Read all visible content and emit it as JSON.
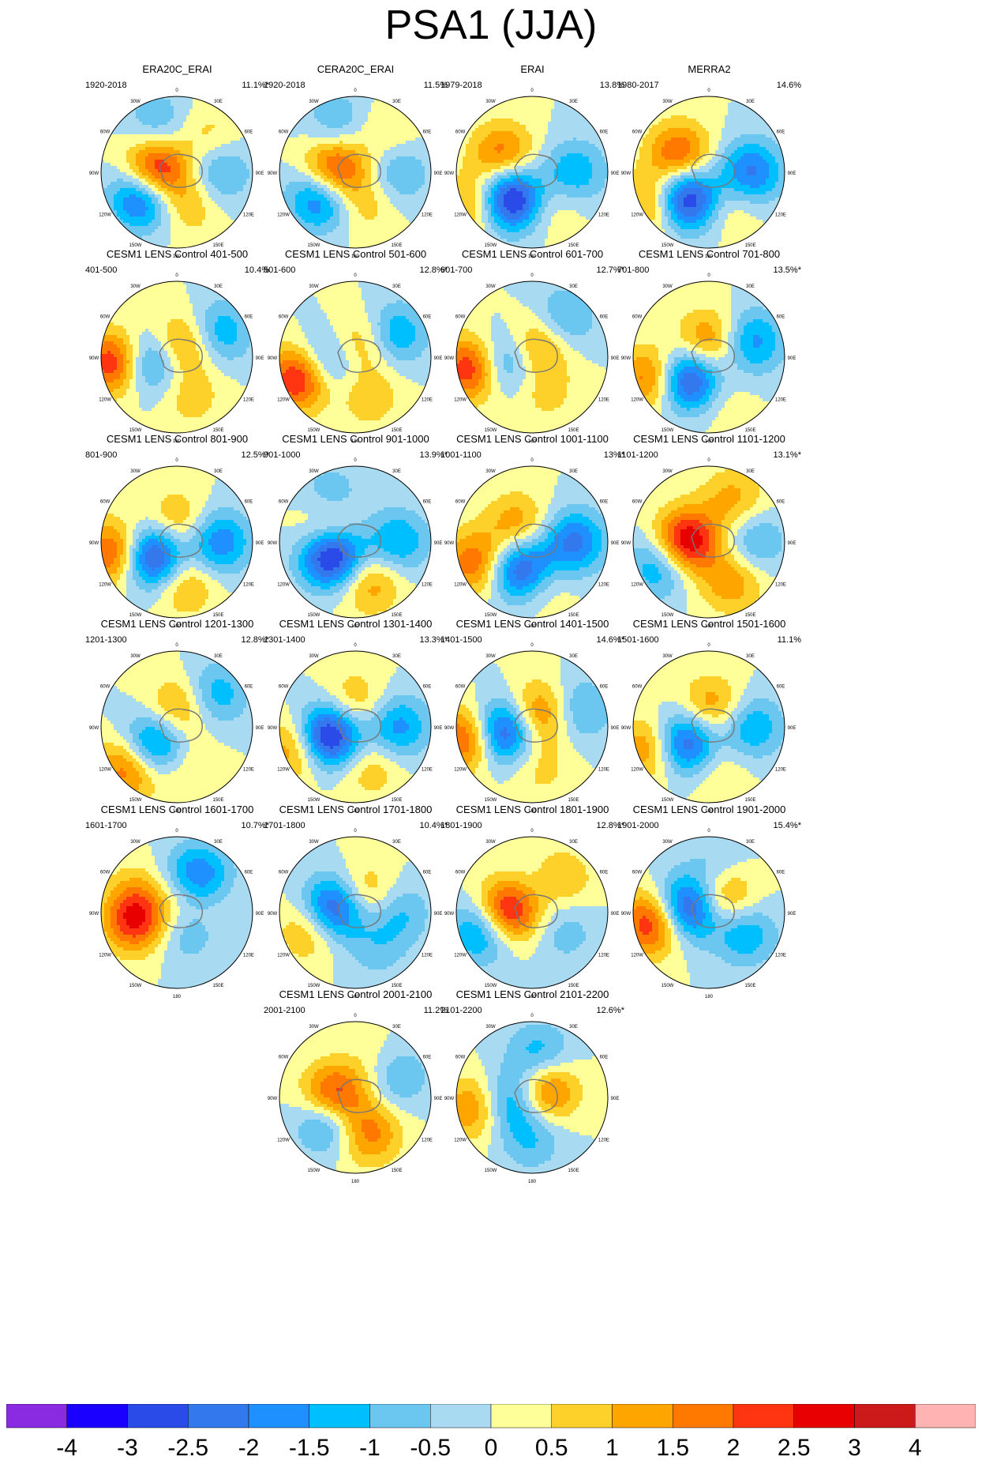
{
  "title": "PSA1 (JJA)",
  "chart_data": {
    "type": "heatmap",
    "projection": "south-polar-stereographic",
    "panels": [
      {
        "title": "ERA20C_ERAI",
        "period": "1920-2018",
        "variance": "11.1%*",
        "centers": [
          {
            "lon": -90,
            "r": 0.28,
            "v": 3.3
          },
          {
            "lon": -125,
            "r": 0.55,
            "v": -3.0
          },
          {
            "lon": 40,
            "r": 0.62,
            "v": 0.8
          },
          {
            "lon": 90,
            "r": 0.55,
            "v": -1.3
          },
          {
            "lon": 160,
            "r": 0.45,
            "v": 1.0
          },
          {
            "lon": -20,
            "r": 0.7,
            "v": -1.0
          }
        ]
      },
      {
        "title": "CERA20C_ERAI",
        "period": "1920-2018",
        "variance": "11.5%",
        "centers": [
          {
            "lon": -90,
            "r": 0.28,
            "v": 3.0
          },
          {
            "lon": -125,
            "r": 0.55,
            "v": -2.7
          },
          {
            "lon": 40,
            "r": 0.62,
            "v": 0.7
          },
          {
            "lon": 90,
            "r": 0.55,
            "v": -1.2
          },
          {
            "lon": 160,
            "r": 0.45,
            "v": 0.8
          },
          {
            "lon": -20,
            "r": 0.7,
            "v": -1.0
          }
        ]
      },
      {
        "title": "ERAI",
        "period": "1979-2018",
        "variance": "13.8%",
        "centers": [
          {
            "lon": -140,
            "r": 0.45,
            "v": -3.8
          },
          {
            "lon": -60,
            "r": 0.45,
            "v": 1.9
          },
          {
            "lon": -120,
            "r": 0.85,
            "v": 1.5
          },
          {
            "lon": 90,
            "r": 0.55,
            "v": -1.5
          },
          {
            "lon": 150,
            "r": 0.5,
            "v": 0.7
          }
        ]
      },
      {
        "title": "MERRA2",
        "period": "1980-2017",
        "variance": "14.6%",
        "centers": [
          {
            "lon": -140,
            "r": 0.45,
            "v": -3.6
          },
          {
            "lon": -60,
            "r": 0.45,
            "v": 2.2
          },
          {
            "lon": -120,
            "r": 0.85,
            "v": 1.6
          },
          {
            "lon": 90,
            "r": 0.55,
            "v": -2.2
          },
          {
            "lon": 150,
            "r": 0.5,
            "v": 0.8
          }
        ]
      },
      {
        "title": "CESM1 LENS Control 401-500",
        "period": "401-500",
        "variance": "10.4%",
        "centers": [
          {
            "lon": -95,
            "r": 0.82,
            "v": 2.8
          },
          {
            "lon": -100,
            "r": 0.38,
            "v": -2.2
          },
          {
            "lon": 20,
            "r": 0.18,
            "v": 1.7
          },
          {
            "lon": 60,
            "r": 0.65,
            "v": -1.5
          },
          {
            "lon": 160,
            "r": 0.55,
            "v": 0.8
          }
        ]
      },
      {
        "title": "CESM1 LENS Control 501-600",
        "period": "501-600",
        "variance": "12.8%*",
        "centers": [
          {
            "lon": -110,
            "r": 0.78,
            "v": 3.0
          },
          {
            "lon": -100,
            "r": 0.38,
            "v": -1.9
          },
          {
            "lon": 20,
            "r": 0.18,
            "v": 1.4
          },
          {
            "lon": 60,
            "r": 0.6,
            "v": -1.6
          },
          {
            "lon": 160,
            "r": 0.55,
            "v": 0.9
          }
        ]
      },
      {
        "title": "CESM1 LENS Control 601-700",
        "period": "601-700",
        "variance": "12.7%*",
        "centers": [
          {
            "lon": -100,
            "r": 0.8,
            "v": 2.9
          },
          {
            "lon": -100,
            "r": 0.4,
            "v": -2.0
          },
          {
            "lon": 30,
            "r": 0.2,
            "v": 1.7
          },
          {
            "lon": 40,
            "r": 0.62,
            "v": -1.4
          },
          {
            "lon": 160,
            "r": 0.5,
            "v": 0.7
          }
        ]
      },
      {
        "title": "CESM1 LENS Control 701-800",
        "period": "701-800",
        "variance": "13.5%*",
        "centers": [
          {
            "lon": -140,
            "r": 0.4,
            "v": -3.3
          },
          {
            "lon": -110,
            "r": 0.82,
            "v": 2.0
          },
          {
            "lon": 0,
            "r": 0.2,
            "v": 1.8
          },
          {
            "lon": 70,
            "r": 0.6,
            "v": -1.8
          },
          {
            "lon": 170,
            "r": 0.55,
            "v": 0.6
          }
        ]
      },
      {
        "title": "CESM1 LENS Control 801-900",
        "period": "801-900",
        "variance": "12.5%*",
        "centers": [
          {
            "lon": -120,
            "r": 0.38,
            "v": -3.5
          },
          {
            "lon": -100,
            "r": 0.82,
            "v": 2.5
          },
          {
            "lon": 0,
            "r": 0.25,
            "v": 1.3
          },
          {
            "lon": 90,
            "r": 0.55,
            "v": -2.0
          },
          {
            "lon": 170,
            "r": 0.55,
            "v": 1.3
          }
        ]
      },
      {
        "title": "CESM1 LENS Control 901-1000",
        "period": "901-1000",
        "variance": "13.9%*",
        "centers": [
          {
            "lon": -120,
            "r": 0.35,
            "v": -3.8
          },
          {
            "lon": -60,
            "r": 0.4,
            "v": 1.8
          },
          {
            "lon": 90,
            "r": 0.55,
            "v": -1.6
          },
          {
            "lon": 160,
            "r": 0.55,
            "v": 1.5
          },
          {
            "lon": -30,
            "r": 0.65,
            "v": -1.2
          }
        ]
      },
      {
        "title": "CESM1 LENS Control 1001-1100",
        "period": "1001-1100",
        "variance": "13%*",
        "centers": [
          {
            "lon": -160,
            "r": 0.4,
            "v": -3.2
          },
          {
            "lon": -110,
            "r": 0.8,
            "v": 2.0
          },
          {
            "lon": -40,
            "r": 0.3,
            "v": 1.4
          },
          {
            "lon": 90,
            "r": 0.55,
            "v": -2.2
          },
          {
            "lon": 170,
            "r": 0.55,
            "v": 1.0
          }
        ]
      },
      {
        "title": "CESM1 LENS Control 1101-1200",
        "period": "1101-1200",
        "variance": "13.1%*",
        "centers": [
          {
            "lon": -90,
            "r": 0.3,
            "v": 3.3
          },
          {
            "lon": -115,
            "r": 0.7,
            "v": -1.8
          },
          {
            "lon": 30,
            "r": 0.65,
            "v": 1.2
          },
          {
            "lon": 90,
            "r": 0.6,
            "v": -1.2
          },
          {
            "lon": 150,
            "r": 0.6,
            "v": 1.4
          }
        ]
      },
      {
        "title": "CESM1 LENS Control 1201-1300",
        "period": "1201-1300",
        "variance": "12.8%*",
        "centers": [
          {
            "lon": -130,
            "r": 0.4,
            "v": -2.6
          },
          {
            "lon": -130,
            "r": 0.82,
            "v": 2.2
          },
          {
            "lon": 10,
            "r": 0.25,
            "v": 1.5
          },
          {
            "lon": 50,
            "r": 0.65,
            "v": -1.5
          },
          {
            "lon": 170,
            "r": 0.55,
            "v": 0.7
          }
        ]
      },
      {
        "title": "CESM1 LENS Control 1301-1400",
        "period": "1301-1400",
        "variance": "13.3%*",
        "centers": [
          {
            "lon": -110,
            "r": 0.38,
            "v": -3.8
          },
          {
            "lon": -110,
            "r": 0.82,
            "v": 1.8
          },
          {
            "lon": 0,
            "r": 0.3,
            "v": 1.2
          },
          {
            "lon": 90,
            "r": 0.55,
            "v": -1.8
          },
          {
            "lon": 160,
            "r": 0.55,
            "v": 1.0
          }
        ]
      },
      {
        "title": "CESM1 LENS Control 1401-1500",
        "period": "1401-1500",
        "variance": "14.6%*",
        "centers": [
          {
            "lon": -100,
            "r": 0.4,
            "v": -3.3
          },
          {
            "lon": -100,
            "r": 0.85,
            "v": 2.6
          },
          {
            "lon": 30,
            "r": 0.2,
            "v": 2.0
          },
          {
            "lon": 70,
            "r": 0.65,
            "v": -1.3
          },
          {
            "lon": 170,
            "r": 0.55,
            "v": 0.7
          }
        ]
      },
      {
        "title": "CESM1 LENS Control 1501-1600",
        "period": "1501-1600",
        "variance": "11.1%",
        "centers": [
          {
            "lon": -125,
            "r": 0.38,
            "v": -3.0
          },
          {
            "lon": -110,
            "r": 0.82,
            "v": 1.8
          },
          {
            "lon": 10,
            "r": 0.25,
            "v": 1.6
          },
          {
            "lon": 90,
            "r": 0.55,
            "v": -1.6
          },
          {
            "lon": 170,
            "r": 0.55,
            "v": 0.7
          }
        ]
      },
      {
        "title": "CESM1 LENS Control 1601-1700",
        "period": "1601-1700",
        "variance": "10.7%*",
        "centers": [
          {
            "lon": -100,
            "r": 0.55,
            "v": 2.6
          },
          {
            "lon": 30,
            "r": 0.55,
            "v": -2.2
          },
          {
            "lon": 60,
            "r": 0.2,
            "v": 1.0
          },
          {
            "lon": 150,
            "r": 0.25,
            "v": -1.2
          },
          {
            "lon": -60,
            "r": 0.6,
            "v": 0.6
          }
        ]
      },
      {
        "title": "CESM1 LENS Control 1701-1800",
        "period": "1701-1800",
        "variance": "10.4%*",
        "centers": [
          {
            "lon": -80,
            "r": 0.28,
            "v": -3.3
          },
          {
            "lon": -110,
            "r": 0.6,
            "v": 1.5
          },
          {
            "lon": 30,
            "r": 0.25,
            "v": 1.6
          },
          {
            "lon": 90,
            "r": 0.55,
            "v": -1.2
          },
          {
            "lon": 150,
            "r": 0.55,
            "v": -0.7
          }
        ]
      },
      {
        "title": "CESM1 LENS Control 1801-1900",
        "period": "1801-1900",
        "variance": "12.8%*",
        "centers": [
          {
            "lon": -85,
            "r": 0.3,
            "v": 3.2
          },
          {
            "lon": -110,
            "r": 0.7,
            "v": -2.0
          },
          {
            "lon": 40,
            "r": 0.55,
            "v": 1.3
          },
          {
            "lon": 10,
            "r": 0.3,
            "v": -0.8
          },
          {
            "lon": 120,
            "r": 0.5,
            "v": -0.8
          }
        ]
      },
      {
        "title": "CESM1 LENS Control 1901-2000",
        "period": "1901-2000",
        "variance": "15.4%*",
        "centers": [
          {
            "lon": -100,
            "r": 0.75,
            "v": 2.8
          },
          {
            "lon": -80,
            "r": 0.3,
            "v": -3.2
          },
          {
            "lon": 40,
            "r": 0.3,
            "v": 1.8
          },
          {
            "lon": 120,
            "r": 0.55,
            "v": -1.5
          },
          {
            "lon": 10,
            "r": 0.6,
            "v": -0.8
          }
        ]
      },
      {
        "title": "CESM1 LENS Control 2001-2100",
        "period": "2001-2100",
        "variance": "11.2%",
        "centers": [
          {
            "lon": -90,
            "r": 0.28,
            "v": 3.0
          },
          {
            "lon": -130,
            "r": 0.45,
            "v": -2.3
          },
          {
            "lon": 160,
            "r": 0.5,
            "v": 1.8
          },
          {
            "lon": 60,
            "r": 0.6,
            "v": -1.5
          },
          {
            "lon": 40,
            "r": 0.55,
            "v": 0.8
          }
        ]
      },
      {
        "title": "CESM1 LENS Control 2101-2200",
        "period": "2101-2200",
        "variance": "12.6%*",
        "centers": [
          {
            "lon": 60,
            "r": 0.2,
            "v": 2.3
          },
          {
            "lon": -100,
            "r": 0.3,
            "v": -2.0
          },
          {
            "lon": -100,
            "r": 0.75,
            "v": 1.8
          },
          {
            "lon": 10,
            "r": 0.55,
            "v": -1.5
          },
          {
            "lon": 180,
            "r": 0.55,
            "v": -1.0
          }
        ]
      }
    ],
    "polar_labels": [
      "0",
      "30E",
      "60E",
      "90E",
      "120E",
      "150E",
      "180",
      "150W",
      "120W",
      "90W",
      "60W",
      "30W"
    ],
    "colorbar": {
      "colors": [
        "#8a2be2",
        "#1a00ff",
        "#2b4be8",
        "#3478ee",
        "#1e90ff",
        "#00bfff",
        "#6cc7f0",
        "#a8daf2",
        "#ffff9a",
        "#fed12a",
        "#fea500",
        "#ff7800",
        "#ff3410",
        "#e80000",
        "#cc1a1a",
        "#ffb3b3"
      ],
      "labels": [
        "-4",
        "-3",
        "-2.5",
        "-2",
        "-1.5",
        "-1",
        "-0.5",
        "0",
        "0.5",
        "1",
        "1.5",
        "2",
        "2.5",
        "3",
        "4"
      ]
    }
  }
}
